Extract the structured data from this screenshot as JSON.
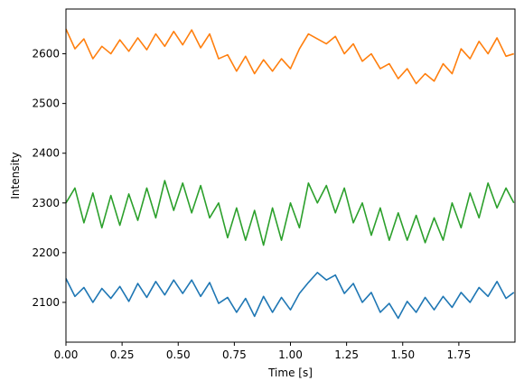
{
  "chart_data": {
    "type": "line",
    "title": "",
    "xlabel": "Time [s]",
    "ylabel": "Intensity",
    "xlim": [
      0.0,
      2.0
    ],
    "ylim": [
      2020,
      2690
    ],
    "x_ticks": [
      0.0,
      0.25,
      0.5,
      0.75,
      1.0,
      1.25,
      1.5,
      1.75
    ],
    "x_tick_labels": [
      "0.00",
      "0.25",
      "0.50",
      "0.75",
      "1.00",
      "1.25",
      "1.50",
      "1.75"
    ],
    "y_ticks": [
      2100,
      2200,
      2300,
      2400,
      2500,
      2600
    ],
    "y_tick_labels": [
      "2100",
      "2200",
      "2300",
      "2400",
      "2500",
      "2600"
    ],
    "grid": false,
    "legend": "none",
    "series": [
      {
        "color": "#1f77b4",
        "x": [
          0.0,
          0.04,
          0.08,
          0.12,
          0.16,
          0.2,
          0.24,
          0.28,
          0.32,
          0.36,
          0.4,
          0.44,
          0.48,
          0.52,
          0.56,
          0.6,
          0.64,
          0.68,
          0.72,
          0.76,
          0.8,
          0.84,
          0.88,
          0.92,
          0.96,
          1.0,
          1.04,
          1.08,
          1.12,
          1.16,
          1.2,
          1.24,
          1.28,
          1.32,
          1.36,
          1.4,
          1.44,
          1.48,
          1.52,
          1.56,
          1.6,
          1.64,
          1.68,
          1.72,
          1.76,
          1.8,
          1.84,
          1.88,
          1.92,
          1.96,
          1.995
        ],
        "y": [
          2148,
          2112,
          2130,
          2100,
          2128,
          2108,
          2132,
          2102,
          2138,
          2110,
          2142,
          2115,
          2145,
          2118,
          2145,
          2112,
          2140,
          2098,
          2110,
          2080,
          2108,
          2072,
          2112,
          2080,
          2110,
          2085,
          2118,
          2140,
          2160,
          2145,
          2155,
          2118,
          2138,
          2100,
          2120,
          2080,
          2098,
          2068,
          2102,
          2080,
          2110,
          2085,
          2112,
          2090,
          2120,
          2100,
          2130,
          2112,
          2142,
          2108,
          2120
        ]
      },
      {
        "color": "#ff7f0e",
        "x": [
          0.0,
          0.04,
          0.08,
          0.12,
          0.16,
          0.2,
          0.24,
          0.28,
          0.32,
          0.36,
          0.4,
          0.44,
          0.48,
          0.52,
          0.56,
          0.6,
          0.64,
          0.68,
          0.72,
          0.76,
          0.8,
          0.84,
          0.88,
          0.92,
          0.96,
          1.0,
          1.04,
          1.08,
          1.12,
          1.16,
          1.2,
          1.24,
          1.28,
          1.32,
          1.36,
          1.4,
          1.44,
          1.48,
          1.52,
          1.56,
          1.6,
          1.64,
          1.68,
          1.72,
          1.76,
          1.8,
          1.84,
          1.88,
          1.92,
          1.96,
          1.995
        ],
        "y": [
          2650,
          2610,
          2630,
          2590,
          2615,
          2600,
          2628,
          2605,
          2632,
          2608,
          2640,
          2615,
          2645,
          2618,
          2648,
          2612,
          2640,
          2590,
          2598,
          2565,
          2595,
          2560,
          2588,
          2565,
          2590,
          2570,
          2610,
          2640,
          2630,
          2620,
          2635,
          2600,
          2620,
          2585,
          2600,
          2570,
          2580,
          2550,
          2570,
          2540,
          2560,
          2545,
          2580,
          2560,
          2610,
          2590,
          2625,
          2600,
          2632,
          2595,
          2600
        ]
      },
      {
        "color": "#2ca02c",
        "x": [
          0.0,
          0.04,
          0.08,
          0.12,
          0.16,
          0.2,
          0.24,
          0.28,
          0.32,
          0.36,
          0.4,
          0.44,
          0.48,
          0.52,
          0.56,
          0.6,
          0.64,
          0.68,
          0.72,
          0.76,
          0.8,
          0.84,
          0.88,
          0.92,
          0.96,
          1.0,
          1.04,
          1.08,
          1.12,
          1.16,
          1.2,
          1.24,
          1.28,
          1.32,
          1.36,
          1.4,
          1.44,
          1.48,
          1.52,
          1.56,
          1.6,
          1.64,
          1.68,
          1.72,
          1.76,
          1.8,
          1.84,
          1.88,
          1.92,
          1.96,
          1.995
        ],
        "y": [
          2300,
          2330,
          2260,
          2320,
          2250,
          2315,
          2255,
          2318,
          2265,
          2330,
          2270,
          2345,
          2285,
          2340,
          2280,
          2335,
          2270,
          2300,
          2230,
          2290,
          2225,
          2285,
          2215,
          2290,
          2225,
          2300,
          2250,
          2340,
          2300,
          2335,
          2280,
          2330,
          2260,
          2300,
          2235,
          2290,
          2225,
          2280,
          2225,
          2275,
          2220,
          2270,
          2225,
          2300,
          2250,
          2320,
          2270,
          2340,
          2290,
          2330,
          2300
        ]
      }
    ]
  }
}
